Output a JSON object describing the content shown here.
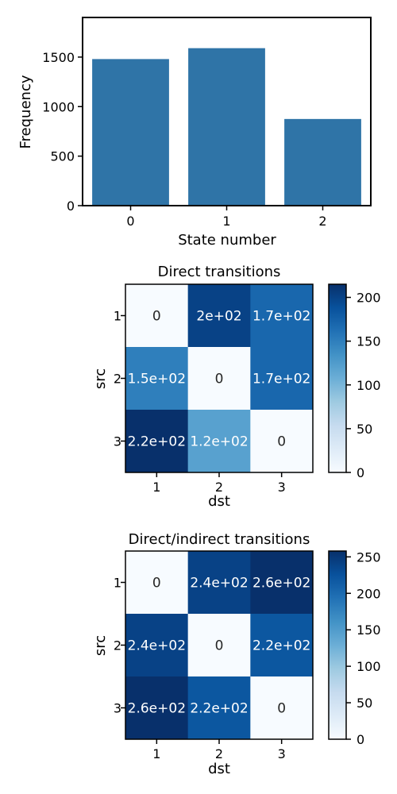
{
  "chart_data": [
    {
      "type": "bar",
      "title": "",
      "xlabel": "State number",
      "ylabel": "Frequency",
      "categories": [
        "0",
        "1",
        "2"
      ],
      "values": [
        1480,
        1590,
        875
      ],
      "ylim": [
        0,
        1900
      ],
      "yticks": [
        0,
        500,
        1000,
        1500
      ],
      "ytick_labels": [
        "0",
        "500",
        "1000",
        "1500"
      ],
      "bar_color": "#2f74a7",
      "grid": false
    },
    {
      "type": "heatmap",
      "title": "Direct transitions",
      "xlabel": "dst",
      "ylabel": "src",
      "x_categories": [
        "1",
        "2",
        "3"
      ],
      "y_categories": [
        "1",
        "2",
        "3"
      ],
      "values": [
        [
          0,
          200,
          170
        ],
        [
          150,
          0,
          170
        ],
        [
          220,
          120,
          0
        ]
      ],
      "annotations": [
        [
          "0",
          "2e+02",
          "1.7e+02"
        ],
        [
          "1.5e+02",
          "0",
          "1.7e+02"
        ],
        [
          "2.2e+02",
          "1.2e+02",
          "0"
        ]
      ],
      "colormap": "Blues",
      "vmin": 0,
      "vmax": 215,
      "colorbar_ticks": [
        0,
        50,
        100,
        150,
        200
      ],
      "colorbar_labels": [
        "0",
        "50",
        "100",
        "150",
        "200"
      ]
    },
    {
      "type": "heatmap",
      "title": "Direct/indirect transitions",
      "xlabel": "dst",
      "ylabel": "src",
      "x_categories": [
        "1",
        "2",
        "3"
      ],
      "y_categories": [
        "1",
        "2",
        "3"
      ],
      "values": [
        [
          0,
          240,
          260
        ],
        [
          240,
          0,
          220
        ],
        [
          260,
          220,
          0
        ]
      ],
      "annotations": [
        [
          "0",
          "2.4e+02",
          "2.6e+02"
        ],
        [
          "2.4e+02",
          "0",
          "2.2e+02"
        ],
        [
          "2.6e+02",
          "2.2e+02",
          "0"
        ]
      ],
      "colormap": "Blues",
      "vmin": 0,
      "vmax": 258,
      "colorbar_ticks": [
        0,
        50,
        100,
        150,
        200,
        250
      ],
      "colorbar_labels": [
        "0",
        "50",
        "100",
        "150",
        "200",
        "250"
      ]
    }
  ]
}
